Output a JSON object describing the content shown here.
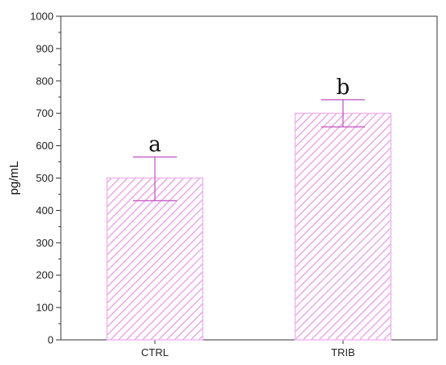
{
  "chart_data": {
    "type": "bar",
    "categories": [
      "CTRL",
      "TRIB"
    ],
    "values": [
      500,
      700
    ],
    "error_low": [
      430,
      658
    ],
    "error_high": [
      565,
      742
    ],
    "significance": [
      "a",
      "b"
    ],
    "ylabel": "pg/mL",
    "xlabel": "",
    "ylim": [
      0,
      1000
    ],
    "yticks": [
      0,
      100,
      200,
      300,
      400,
      500,
      600,
      700,
      800,
      900,
      1000
    ],
    "grid": false,
    "legend": "none",
    "bar_fill": "hatched",
    "bar_color": "#d66fd6"
  }
}
